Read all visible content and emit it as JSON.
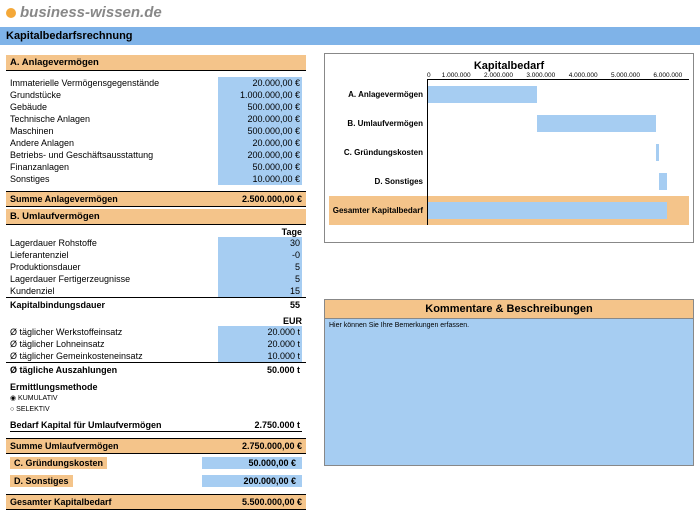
{
  "logo": {
    "text": "business-wissen.de"
  },
  "title": "Kapitalbedarfsrechnung",
  "sections": {
    "a": {
      "header": "A. Anlagevermögen",
      "items": [
        {
          "label": "Immaterielle Vermögensgegenstände",
          "value": "20.000,00 €"
        },
        {
          "label": "Grundstücke",
          "value": "1.000.000,00 €"
        },
        {
          "label": "Gebäude",
          "value": "500.000,00 €"
        },
        {
          "label": "Technische Anlagen",
          "value": "200.000,00 €"
        },
        {
          "label": "Maschinen",
          "value": "500.000,00 €"
        },
        {
          "label": "Andere Anlagen",
          "value": "20.000,00 €"
        },
        {
          "label": "Betriebs- und Geschäftsausstattung",
          "value": "200.000,00 €"
        },
        {
          "label": "Finanzanlagen",
          "value": "50.000,00 €"
        },
        {
          "label": "Sonstiges",
          "value": "10.000,00 €"
        }
      ],
      "sum_label": "Summe Anlagevermögen",
      "sum_value": "2.500.000,00 €"
    },
    "b": {
      "header": "B. Umlaufvermögen",
      "col1": "Tage",
      "days": [
        {
          "label": "Lagerdauer Rohstoffe",
          "value": "30"
        },
        {
          "label": "Lieferantenziel",
          "value": "-0"
        },
        {
          "label": "Produktionsdauer",
          "value": "5"
        },
        {
          "label": "Lagerdauer Fertigerzeugnisse",
          "value": "5"
        },
        {
          "label": "Kundenziel",
          "value": "15"
        }
      ],
      "binding_label": "Kapitalbindungsdauer",
      "binding_value": "55",
      "col2": "EUR",
      "eur": [
        {
          "label": "Ø täglicher Werkstoffeinsatz",
          "value": "20.000 t"
        },
        {
          "label": "Ø täglicher Lohneinsatz",
          "value": "20.000 t"
        },
        {
          "label": "Ø täglicher Gemeinkosteneinsatz",
          "value": "10.000 t"
        }
      ],
      "daily_label": "Ø tägliche Auszahlungen",
      "daily_value": "50.000 t",
      "method_label": "Ermittlungsmethode",
      "method1": "◉ KUMULATIV",
      "method2": "○ SELEKTIV",
      "need_label": "Bedarf Kapital für Umlaufvermögen",
      "need_value": "2.750.000 t",
      "sum_label": "Summe Umlaufvermögen",
      "sum_value": "2.750.000,00 €"
    },
    "c": {
      "header": "C. Gründungskosten",
      "value": "50.000,00 €"
    },
    "d": {
      "header": "D. Sonstiges",
      "value": "200.000,00 €"
    },
    "total": {
      "label": "Gesamter Kapitalbedarf",
      "value": "5.500.000,00 €"
    }
  },
  "chart": {
    "title": "Kapitalbedarf",
    "ticks": [
      "0",
      "1.000.000",
      "2.000.000",
      "3.000.000",
      "4.000.000",
      "5.000.000",
      "6.000.000"
    ],
    "max": 6000000,
    "bars": [
      {
        "label": "A. Anlagevermögen",
        "start": 0,
        "end": 2500000,
        "total": false
      },
      {
        "label": "B. Umlaufvermögen",
        "start": 2500000,
        "end": 5250000,
        "total": false
      },
      {
        "label": "C. Gründungskosten",
        "start": 5250000,
        "end": 5300000,
        "total": false
      },
      {
        "label": "D. Sonstiges",
        "start": 5300000,
        "end": 5500000,
        "total": false
      },
      {
        "label": "Gesamter Kapitalbedarf",
        "start": 0,
        "end": 5500000,
        "total": true
      }
    ],
    "bar_color": "#a6cdf2",
    "total_bg": "#f4c48a"
  },
  "comments": {
    "header": "Kommentare & Beschreibungen",
    "hint": "Hier können Sie Ihre Bemerkungen erfassen."
  }
}
